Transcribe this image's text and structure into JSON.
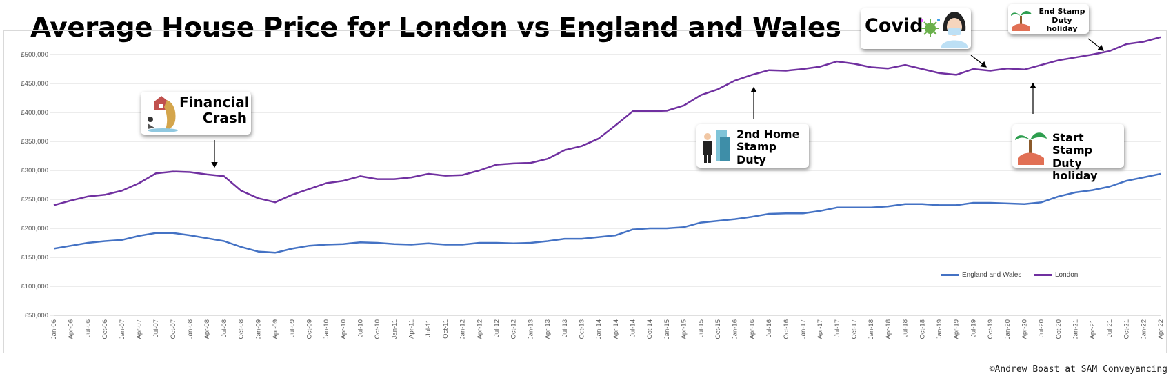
{
  "title": "Average House Price for London vs England and Wales",
  "credit": "©Andrew Boast at SAM Conveyancing",
  "annotations": {
    "financial_crash": "Financial Crash",
    "second_home": "2nd Home Stamp Duty",
    "covid": "Covid",
    "end_stamp": "End Stamp Duty holiday",
    "start_stamp": "Start Stamp Duty holiday"
  },
  "chart_data": {
    "type": "line",
    "title": "Average House Price for London vs England and Wales",
    "xlabel": "",
    "ylabel": "",
    "ylim": [
      50000,
      525000
    ],
    "yticks": [
      50000,
      100000,
      150000,
      200000,
      250000,
      300000,
      350000,
      400000,
      450000,
      500000
    ],
    "ytick_labels": [
      "£50,000",
      "£100,000",
      "£150,000",
      "£200,000",
      "£250,000",
      "£300,000",
      "£350,000",
      "£400,000",
      "£450,000",
      "£500,000"
    ],
    "xtick_labels": [
      "Jan-06",
      "Apr-06",
      "Jul-06",
      "Oct-06",
      "Jan-07",
      "Apr-07",
      "Jul-07",
      "Oct-07",
      "Jan-08",
      "Apr-08",
      "Jul-08",
      "Oct-08",
      "Jan-09",
      "Apr-09",
      "Jul-09",
      "Oct-09",
      "Jan-10",
      "Apr-10",
      "Jul-10",
      "Oct-10",
      "Jan-11",
      "Apr-11",
      "Jul-11",
      "Oct-11",
      "Jan-12",
      "Apr-12",
      "Jul-12",
      "Oct-12",
      "Jan-13",
      "Apr-13",
      "Jul-13",
      "Oct-13",
      "Jan-14",
      "Apr-14",
      "Jul-14",
      "Oct-14",
      "Jan-15",
      "Apr-15",
      "Jul-15",
      "Oct-15",
      "Jan-16",
      "Apr-16",
      "Jul-16",
      "Oct-16",
      "Jan-17",
      "Apr-17",
      "Jul-17",
      "Oct-17",
      "Jan-18",
      "Apr-18",
      "Jul-18",
      "Oct-18",
      "Jan-19",
      "Apr-19",
      "Jul-19",
      "Oct-19",
      "Jan-20",
      "Apr-20",
      "Jul-20",
      "Oct-20",
      "Jan-21",
      "Apr-21",
      "Jul-21",
      "Oct-21",
      "Jan-22",
      "Apr-22"
    ],
    "grid": true,
    "legend": "bottom-right",
    "series": [
      {
        "name": "England and Wales",
        "color": "#4472c4",
        "values": [
          165000,
          170000,
          175000,
          178000,
          180000,
          187000,
          192000,
          192000,
          188000,
          183000,
          178000,
          168000,
          160000,
          158000,
          165000,
          170000,
          172000,
          173000,
          176000,
          175000,
          173000,
          172000,
          174000,
          172000,
          172000,
          175000,
          175000,
          174000,
          175000,
          178000,
          182000,
          182000,
          185000,
          188000,
          198000,
          200000,
          200000,
          202000,
          210000,
          213000,
          216000,
          220000,
          225000,
          226000,
          226000,
          230000,
          236000,
          236000,
          236000,
          238000,
          242000,
          242000,
          240000,
          240000,
          244000,
          244000,
          243000,
          242000,
          245000,
          255000,
          262000,
          266000,
          272000,
          282000,
          288000,
          294000
        ]
      },
      {
        "name": "London",
        "color": "#7030a0",
        "values": [
          240000,
          248000,
          255000,
          258000,
          265000,
          278000,
          295000,
          298000,
          297000,
          293000,
          290000,
          265000,
          252000,
          245000,
          258000,
          268000,
          278000,
          282000,
          290000,
          285000,
          285000,
          288000,
          294000,
          291000,
          292000,
          300000,
          310000,
          312000,
          313000,
          320000,
          335000,
          342000,
          355000,
          378000,
          402000,
          402000,
          403000,
          412000,
          430000,
          440000,
          455000,
          465000,
          473000,
          472000,
          475000,
          479000,
          488000,
          484000,
          478000,
          476000,
          482000,
          475000,
          468000,
          465000,
          475000,
          472000,
          476000,
          474000,
          482000,
          490000,
          495000,
          500000,
          506000,
          518000,
          522000,
          530000
        ]
      }
    ]
  }
}
